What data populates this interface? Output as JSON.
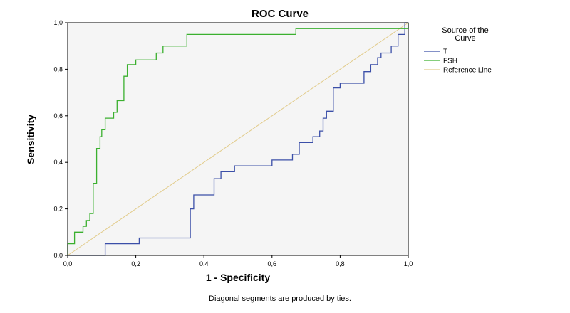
{
  "chart_data": {
    "type": "line",
    "title": "ROC Curve",
    "xlabel": "1 - Specificity",
    "ylabel": "Sensitivity",
    "xlim": [
      0,
      1
    ],
    "ylim": [
      0,
      1
    ],
    "x_ticks": [
      "0,0",
      "0,2",
      "0,4",
      "0,6",
      "0,8",
      "1,0"
    ],
    "y_ticks": [
      "0,0",
      "0,2",
      "0,4",
      "0,6",
      "0,8",
      "1,0"
    ],
    "grid": false,
    "plot_background": "#f5f5f5",
    "legend": {
      "title": "Source of the Curve",
      "title_lines": [
        "Source of the",
        "Curve"
      ],
      "placement": "right",
      "entries": [
        "T",
        "FSH",
        "Reference Line"
      ]
    },
    "footnote": "Diagonal segments are produced by ties.",
    "series": [
      {
        "name": "T",
        "color": "#3b4fa8",
        "x": [
          0,
          0.11,
          0.11,
          0.21,
          0.21,
          0.36,
          0.36,
          0.37,
          0.37,
          0.43,
          0.43,
          0.45,
          0.45,
          0.49,
          0.49,
          0.6,
          0.6,
          0.66,
          0.66,
          0.68,
          0.68,
          0.72,
          0.72,
          0.74,
          0.74,
          0.75,
          0.75,
          0.76,
          0.76,
          0.78,
          0.78,
          0.8,
          0.8,
          0.87,
          0.87,
          0.89,
          0.89,
          0.91,
          0.91,
          0.92,
          0.92,
          0.95,
          0.95,
          0.97,
          0.97,
          0.99,
          0.99,
          1.0
        ],
        "y": [
          0,
          0,
          0.05,
          0.05,
          0.075,
          0.075,
          0.2,
          0.2,
          0.26,
          0.26,
          0.33,
          0.33,
          0.36,
          0.36,
          0.385,
          0.385,
          0.41,
          0.41,
          0.435,
          0.435,
          0.485,
          0.485,
          0.51,
          0.51,
          0.535,
          0.535,
          0.59,
          0.59,
          0.62,
          0.62,
          0.72,
          0.72,
          0.74,
          0.74,
          0.79,
          0.79,
          0.82,
          0.82,
          0.85,
          0.85,
          0.87,
          0.87,
          0.9,
          0.9,
          0.95,
          0.95,
          1.0,
          1.0
        ]
      },
      {
        "name": "FSH",
        "color": "#3bb02f",
        "x": [
          0,
          0,
          0.02,
          0.02,
          0.045,
          0.045,
          0.055,
          0.055,
          0.065,
          0.065,
          0.075,
          0.075,
          0.085,
          0.085,
          0.095,
          0.095,
          0.1,
          0.1,
          0.11,
          0.11,
          0.135,
          0.135,
          0.145,
          0.145,
          0.165,
          0.165,
          0.175,
          0.175,
          0.2,
          0.2,
          0.26,
          0.26,
          0.28,
          0.28,
          0.35,
          0.35,
          0.67,
          0.67,
          1.0,
          1.0
        ],
        "y": [
          0,
          0.05,
          0.05,
          0.1,
          0.1,
          0.125,
          0.125,
          0.15,
          0.15,
          0.18,
          0.18,
          0.31,
          0.31,
          0.46,
          0.46,
          0.51,
          0.51,
          0.54,
          0.54,
          0.59,
          0.59,
          0.615,
          0.615,
          0.665,
          0.665,
          0.77,
          0.77,
          0.82,
          0.82,
          0.84,
          0.84,
          0.87,
          0.87,
          0.9,
          0.9,
          0.95,
          0.95,
          0.975,
          0.975,
          1.0
        ]
      },
      {
        "name": "Reference Line",
        "color": "#e2cc8c",
        "x": [
          0,
          1
        ],
        "y": [
          0,
          1
        ]
      }
    ]
  }
}
